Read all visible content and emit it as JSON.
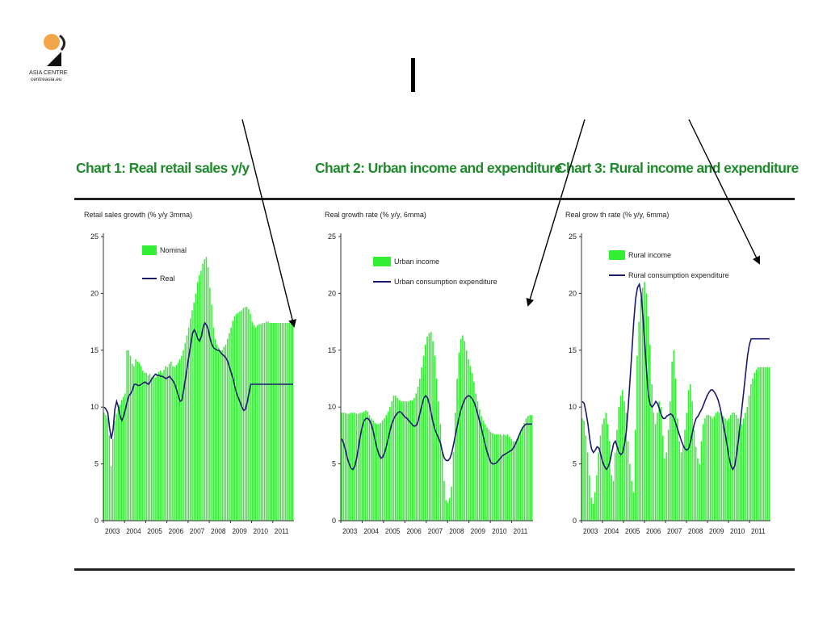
{
  "logo": {
    "line1": "ASIA CENTRE",
    "line2": "centreasia.eu",
    "color_dot": "#f3a54a"
  },
  "charts": [
    {
      "title": "Chart 1: Real retail sales y/y",
      "unit_label": "Retail sales growth (% y/y 3mma)",
      "legend_position": "top-right",
      "chart_data": {
        "type": "bar+line",
        "x": [
          2003.0,
          2003.08,
          2003.17,
          2003.25,
          2003.33,
          2003.42,
          2003.5,
          2003.58,
          2003.67,
          2003.75,
          2003.83,
          2003.92,
          2004.0,
          2004.08,
          2004.17,
          2004.25,
          2004.33,
          2004.42,
          2004.5,
          2004.58,
          2004.67,
          2004.75,
          2004.83,
          2004.92,
          2005.0,
          2005.08,
          2005.17,
          2005.25,
          2005.33,
          2005.42,
          2005.5,
          2005.58,
          2005.67,
          2005.75,
          2005.83,
          2005.92,
          2006.0,
          2006.08,
          2006.17,
          2006.25,
          2006.33,
          2006.42,
          2006.5,
          2006.58,
          2006.67,
          2006.75,
          2006.83,
          2006.92,
          2007.0,
          2007.08,
          2007.17,
          2007.25,
          2007.33,
          2007.42,
          2007.5,
          2007.58,
          2007.67,
          2007.75,
          2007.83,
          2007.92,
          2008.0,
          2008.08,
          2008.17,
          2008.25,
          2008.33,
          2008.42,
          2008.5,
          2008.58,
          2008.67,
          2008.75,
          2008.83,
          2008.92,
          2009.0,
          2009.08,
          2009.17,
          2009.25,
          2009.33,
          2009.42,
          2009.5,
          2009.58,
          2009.67,
          2009.75,
          2009.83,
          2009.92,
          2010.0,
          2010.08,
          2010.17,
          2010.25,
          2010.33,
          2010.42,
          2010.5,
          2010.58,
          2010.67,
          2010.75,
          2010.83,
          2010.92,
          2011.0,
          2011.08,
          2011.17,
          2011.25,
          2011.33,
          2011.42,
          2011.5,
          2011.58,
          2011.67,
          2011.75,
          2011.83,
          2011.92
        ],
        "x_ticks": [
          "2003",
          "2004",
          "2005",
          "2006",
          "2007",
          "2008",
          "2009",
          "2010",
          "2011"
        ],
        "ylim": [
          0,
          25
        ],
        "y_ticks": [
          "0",
          "5",
          "10",
          "15",
          "20",
          "25"
        ],
        "series": [
          {
            "name": "Nominal",
            "kind": "bar",
            "color": "#33ee33",
            "values": [
              9.5,
              9.3,
              9.0,
              7.5,
              4.8,
              7.2,
              8.8,
              9.4,
              9.8,
              10.2,
              10.6,
              10.9,
              11.2,
              15.0,
              15.0,
              14.5,
              13.8,
              13.6,
              14.2,
              14.0,
              13.9,
              13.6,
              13.2,
              13.0,
              13.0,
              12.8,
              12.9,
              12.6,
              12.7,
              12.6,
              12.9,
              13.1,
              13.2,
              13.0,
              13.3,
              13.6,
              13.5,
              13.8,
              14.0,
              13.6,
              13.5,
              13.7,
              13.9,
              14.2,
              14.5,
              15.0,
              15.6,
              16.3,
              17.0,
              17.8,
              18.5,
              19.2,
              20.0,
              21.0,
              21.6,
              22.0,
              22.6,
              23.0,
              23.2,
              22.3,
              20.5,
              19.0,
              17.0,
              16.0,
              15.5,
              15.2,
              15.0,
              15.0,
              15.3,
              15.5,
              16.0,
              16.5,
              17.0,
              17.6,
              18.0,
              18.2,
              18.3,
              18.4,
              18.5,
              18.7,
              18.8,
              18.8,
              18.6,
              18.2,
              17.5,
              17.2,
              17.0,
              17.2,
              17.3,
              17.3,
              17.4,
              17.4,
              17.5,
              17.5,
              17.4,
              17.4,
              17.4,
              17.4,
              17.4,
              17.4,
              17.4,
              17.4,
              17.4,
              17.4,
              17.4,
              17.4,
              17.4,
              17.4
            ]
          },
          {
            "name": "Real",
            "kind": "line",
            "color": "#1a1a6e",
            "values": [
              10.0,
              9.8,
              9.5,
              8.2,
              7.2,
              8.0,
              9.8,
              10.5,
              10.0,
              9.2,
              8.8,
              9.2,
              9.8,
              10.5,
              11.0,
              11.2,
              11.5,
              12.0,
              12.0,
              11.9,
              11.9,
              12.0,
              12.1,
              12.2,
              12.1,
              12.0,
              12.2,
              12.5,
              12.7,
              12.9,
              12.8,
              12.8,
              12.7,
              12.7,
              12.6,
              12.5,
              12.6,
              12.7,
              12.5,
              12.3,
              12.0,
              11.5,
              11.0,
              10.5,
              10.6,
              11.5,
              12.5,
              13.5,
              14.5,
              15.5,
              16.5,
              16.8,
              16.5,
              16.0,
              15.8,
              16.2,
              17.0,
              17.4,
              17.2,
              16.8,
              16.0,
              15.5,
              15.2,
              15.1,
              15.0,
              15.0,
              14.8,
              14.6,
              14.5,
              14.3,
              14.0,
              13.5,
              13.0,
              12.5,
              11.8,
              11.2,
              10.8,
              10.4,
              10.0,
              9.7,
              9.8,
              10.4,
              11.2,
              12.0,
              12.0,
              12.0,
              12.0,
              12.0,
              12.0,
              12.0,
              12.0,
              12.0,
              12.0,
              12.0,
              12.0,
              12.0,
              12.0,
              12.0,
              12.0,
              12.0,
              12.0,
              12.0,
              12.0,
              12.0,
              12.0,
              12.0,
              12.0,
              12.0
            ]
          }
        ]
      }
    },
    {
      "title": "Chart 2: Urban income and expenditure",
      "unit_label": "Real growth rate (% y/y, 6mma)",
      "legend_position": "top-right",
      "chart_data": {
        "type": "bar+line",
        "x_ticks": [
          "2003",
          "2004",
          "2005",
          "2006",
          "2007",
          "2008",
          "2009",
          "2010",
          "2011"
        ],
        "ylim": [
          0,
          25
        ],
        "y_ticks": [
          "0",
          "5",
          "10",
          "15",
          "20",
          "25"
        ],
        "series": [
          {
            "name": "Urban income",
            "kind": "bar",
            "color": "#33ee33",
            "values": [
              9.5,
              9.5,
              9.5,
              9.4,
              9.4,
              9.5,
              9.5,
              9.5,
              9.4,
              9.4,
              9.5,
              9.5,
              9.6,
              9.7,
              9.6,
              9.3,
              9.0,
              8.8,
              8.6,
              8.5,
              8.5,
              8.6,
              8.8,
              9.0,
              9.3,
              9.6,
              10.0,
              10.5,
              11.0,
              11.0,
              10.8,
              10.6,
              10.5,
              10.5,
              10.5,
              10.5,
              10.5,
              10.6,
              10.6,
              10.8,
              11.2,
              11.8,
              12.5,
              13.5,
              14.5,
              15.5,
              16.2,
              16.5,
              16.6,
              15.8,
              14.5,
              12.5,
              10.5,
              8.5,
              6.0,
              3.5,
              1.8,
              1.6,
              2.0,
              3.0,
              6.0,
              9.5,
              12.5,
              14.8,
              16.0,
              16.3,
              15.8,
              15.0,
              14.2,
              13.6,
              13.0,
              12.2,
              11.2,
              10.5,
              9.8,
              9.2,
              8.8,
              8.5,
              8.2,
              8.0,
              7.8,
              7.7,
              7.6,
              7.6,
              7.6,
              7.6,
              7.5,
              7.6,
              7.5,
              7.6,
              7.4,
              7.2,
              7.0,
              7.0,
              7.2,
              7.5,
              7.8,
              8.2,
              8.6,
              9.0,
              9.2,
              9.3,
              9.3
            ]
          },
          {
            "name": "Urban consumption expenditure",
            "kind": "line",
            "color": "#1a1a6e",
            "values": [
              7.2,
              6.8,
              6.2,
              5.5,
              5.0,
              4.6,
              4.5,
              4.8,
              5.5,
              6.5,
              7.5,
              8.3,
              8.8,
              9.0,
              9.0,
              8.8,
              8.4,
              7.8,
              7.0,
              6.3,
              5.8,
              5.5,
              5.6,
              6.0,
              6.6,
              7.3,
              8.0,
              8.6,
              9.0,
              9.3,
              9.5,
              9.6,
              9.5,
              9.3,
              9.1,
              9.0,
              8.8,
              8.6,
              8.4,
              8.3,
              8.4,
              8.8,
              9.5,
              10.2,
              10.8,
              11.0,
              10.8,
              10.2,
              9.4,
              8.6,
              8.0,
              7.6,
              7.2,
              6.8,
              6.0,
              5.5,
              5.3,
              5.3,
              5.5,
              6.0,
              6.8,
              7.6,
              8.4,
              9.2,
              9.8,
              10.3,
              10.7,
              10.9,
              11.0,
              10.9,
              10.7,
              10.4,
              9.9,
              9.3,
              8.7,
              8.0,
              7.3,
              6.6,
              6.0,
              5.5,
              5.1,
              5.0,
              5.0,
              5.1,
              5.3,
              5.5,
              5.7,
              5.8,
              5.9,
              6.0,
              6.1,
              6.2,
              6.4,
              6.7,
              7.1,
              7.5,
              7.9,
              8.2,
              8.4,
              8.5,
              8.5,
              8.5,
              8.5
            ]
          }
        ]
      }
    },
    {
      "title": "Chart 3: Rural income and expenditure",
      "unit_label": "Real grow th rate (% y/y, 6mma)",
      "legend_position": "top-left",
      "chart_data": {
        "type": "bar+line",
        "x_ticks": [
          "2003",
          "2004",
          "2005",
          "2006",
          "2007",
          "2008",
          "2009",
          "2010",
          "2011"
        ],
        "ylim": [
          0,
          25
        ],
        "y_ticks": [
          "0",
          "5",
          "10",
          "15",
          "20",
          "25"
        ],
        "series": [
          {
            "name": "Rural income",
            "kind": "bar",
            "color": "#33ee33",
            "values": [
              9.0,
              8.8,
              7.5,
              6.0,
              4.0,
              2.0,
              1.5,
              2.5,
              4.0,
              6.0,
              7.5,
              8.5,
              9.0,
              9.5,
              8.5,
              7.0,
              4.0,
              3.5,
              6.0,
              8.0,
              10.0,
              11.0,
              11.5,
              10.5,
              9.5,
              7.0,
              5.0,
              3.5,
              2.5,
              8.0,
              14.5,
              17.5,
              19.5,
              20.5,
              21.0,
              20.0,
              18.0,
              15.5,
              12.0,
              9.5,
              8.5,
              9.5,
              10.5,
              10.0,
              7.5,
              5.5,
              6.0,
              8.0,
              10.5,
              14.0,
              15.0,
              12.5,
              9.0,
              7.0,
              6.0,
              6.5,
              8.0,
              9.5,
              11.5,
              12.0,
              10.5,
              8.0,
              6.5,
              5.5,
              5.0,
              7.0,
              8.5,
              9.0,
              9.3,
              9.3,
              9.2,
              9.0,
              9.2,
              9.5,
              9.6,
              9.5,
              9.4,
              9.2,
              9.0,
              8.8,
              9.0,
              9.3,
              9.5,
              9.5,
              9.3,
              9.0,
              8.5,
              8.5,
              9.0,
              9.5,
              10.0,
              11.0,
              12.0,
              12.5,
              13.0,
              13.3,
              13.5,
              13.5,
              13.5,
              13.5,
              13.5,
              13.5,
              13.5
            ]
          },
          {
            "name": "Rural consumption expenditure",
            "kind": "line",
            "color": "#1a1a6e",
            "values": [
              10.5,
              10.3,
              9.5,
              8.5,
              7.2,
              6.3,
              6.0,
              6.2,
              6.5,
              6.4,
              5.8,
              5.2,
              4.8,
              4.5,
              4.7,
              5.2,
              6.0,
              6.8,
              7.0,
              6.5,
              6.0,
              5.8,
              6.0,
              6.8,
              8.0,
              10.0,
              12.5,
              15.0,
              17.5,
              19.5,
              20.5,
              20.8,
              20.0,
              18.0,
              15.5,
              13.0,
              11.0,
              10.2,
              10.0,
              10.2,
              10.5,
              10.3,
              9.8,
              9.3,
              9.0,
              9.0,
              9.2,
              9.3,
              9.4,
              9.3,
              9.0,
              8.5,
              8.0,
              7.5,
              7.0,
              6.6,
              6.3,
              6.2,
              6.4,
              7.0,
              7.8,
              8.5,
              9.0,
              9.2,
              9.5,
              9.8,
              10.2,
              10.6,
              11.0,
              11.3,
              11.5,
              11.5,
              11.3,
              11.0,
              10.6,
              10.0,
              9.2,
              8.3,
              7.5,
              6.5,
              5.5,
              4.8,
              4.5,
              4.8,
              5.8,
              7.0,
              8.5,
              10.0,
              11.5,
              13.0,
              14.5,
              15.5,
              16.0,
              16.0,
              16.0,
              16.0,
              16.0,
              16.0,
              16.0,
              16.0,
              16.0,
              16.0,
              16.0
            ]
          }
        ]
      }
    }
  ]
}
